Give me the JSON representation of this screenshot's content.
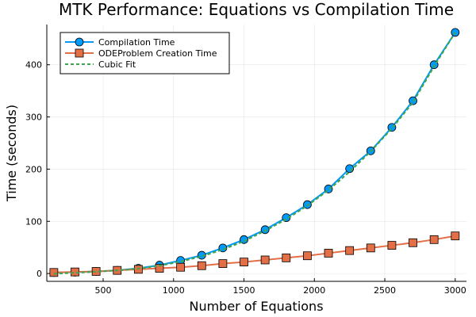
{
  "chart_data": {
    "type": "line",
    "title": "MTK Performance: Equations vs Compilation Time",
    "xlabel": "Number of Equations",
    "ylabel": "Time (seconds)",
    "xlim": [
      100,
      3080
    ],
    "ylim": [
      -15,
      477
    ],
    "x_ticks": [
      500,
      1000,
      1500,
      2000,
      2500,
      3000
    ],
    "y_ticks": [
      0,
      100,
      200,
      300,
      400
    ],
    "grid": true,
    "legend_position": "top-left",
    "x": [
      150,
      300,
      450,
      600,
      750,
      900,
      1050,
      1200,
      1350,
      1500,
      1650,
      1800,
      1950,
      2100,
      2250,
      2400,
      2550,
      2700,
      2850,
      3000
    ],
    "series": [
      {
        "name": "Compilation Time",
        "type": "line-marker",
        "marker": "circle",
        "color": "#009AFA",
        "values": [
          2,
          2.5,
          4,
          6,
          10,
          16,
          25,
          35,
          49,
          65,
          84,
          107,
          132,
          162,
          201,
          235,
          280,
          331,
          400,
          462
        ]
      },
      {
        "name": "ODEProblem Creation Time",
        "type": "line-marker",
        "marker": "square",
        "color": "#E36F47",
        "values": [
          2,
          3,
          4,
          6,
          8,
          10,
          12,
          15,
          19,
          22,
          26,
          30,
          34,
          39,
          44,
          49,
          54,
          59,
          65,
          72
        ]
      },
      {
        "name": "Cubic Fit",
        "type": "line-dashed",
        "color": "#3EA44E",
        "values": [
          -0.5,
          1.5,
          3.5,
          6,
          9.5,
          15,
          23,
          33,
          46,
          62,
          82,
          104,
          130,
          160,
          195,
          234,
          278,
          328,
          397,
          462
        ]
      }
    ]
  }
}
